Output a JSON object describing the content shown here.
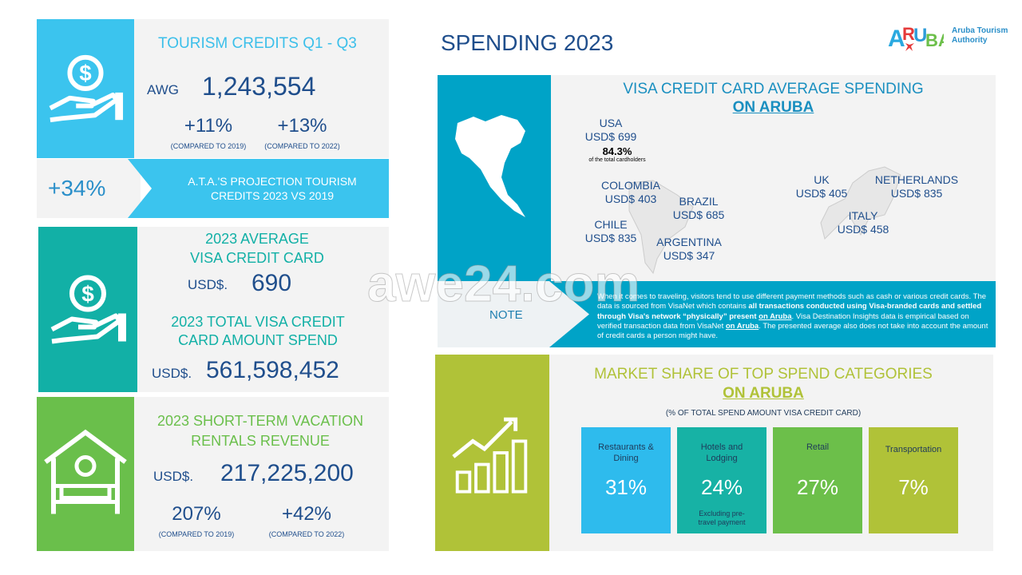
{
  "page_title": "SPENDING 2023",
  "logo": {
    "mark": "ARUBA",
    "text_line1": "Aruba Tourism",
    "text_line2": "Authority"
  },
  "credits": {
    "title": "TOURISM CREDITS Q1 - Q3",
    "currency": "AWG",
    "amount": "1,243,554",
    "change1": "+11%",
    "change1_note": "(COMPARED TO 2019)",
    "change2": "+13%",
    "change2_note": "(COMPARED TO 2022)",
    "projection_value": "+34%",
    "projection_line1": "A.T.A.'S PROJECTION TOURISM",
    "projection_line2": "CREDITS 2023 VS 2019"
  },
  "visa_avg": {
    "title_line1": "2023 AVERAGE",
    "title_line2": "VISA CREDIT CARD",
    "currency": "USD$.",
    "amount": "690",
    "total_line1": "2023 TOTAL VISA CREDIT",
    "total_line2": "CARD AMOUNT SPEND",
    "total_currency": "USD$.",
    "total_amount": "561,598,452"
  },
  "rentals": {
    "title_line1": "2023 SHORT-TERM VACATION",
    "title_line2": "RENTALS REVENUE",
    "currency": "USD$.",
    "amount": "217,225,200",
    "change1": "207%",
    "change1_note": "(COMPARED TO 2019)",
    "change2": "+42%",
    "change2_note": "(COMPARED TO 2022)"
  },
  "visa_panel": {
    "title_line1": "VISA CREDIT CARD AVERAGE SPENDING",
    "title_line2": "ON ARUBA",
    "countries": [
      {
        "name": "USA",
        "value": "USD$ 699"
      },
      {
        "name": "COLOMBIA",
        "value": "USD$ 403"
      },
      {
        "name": "BRAZIL",
        "value": "USD$ 685"
      },
      {
        "name": "CHILE",
        "value": "USD$ 835"
      },
      {
        "name": "ARGENTINA",
        "value": "USD$ 347"
      },
      {
        "name": "UK",
        "value": "USD$ 405"
      },
      {
        "name": "NETHERLANDS",
        "value": "USD$ 835"
      },
      {
        "name": "ITALY",
        "value": "USD$ 458"
      }
    ],
    "usa_share": "84.3%",
    "usa_share_note": "of the total cardholders",
    "note_label": "NOTE",
    "note_p1": "When it comes to traveling, visitors tend to use different payment methods such as cash or various credit cards. The data is sourced from VisaNet which contains ",
    "note_bold": "all transactions conducted using Visa-branded cards and settled through Visa's network “physically” present ",
    "note_u1": "on Aruba",
    "note_p2": ". Visa Destination Insights data is empirical based on verified transaction data from VisaNet ",
    "note_u2": "on Aruba",
    "note_p3": ". The presented average also does not take into account the amount of credit cards a person might have."
  },
  "market": {
    "title_line1": "MARKET SHARE OF TOP SPEND CATEGORIES",
    "title_line2": "ON ARUBA",
    "subtitle": "(% OF TOTAL SPEND AMOUNT VISA CREDIT CARD)",
    "categories": [
      {
        "label": "Restaurants & Dining",
        "value": "31%",
        "color": "#2ebbed"
      },
      {
        "label": "Hotels and Lodging",
        "value": "24%",
        "note": "Excluding pre-travel payment",
        "color": "#17b2a5"
      },
      {
        "label": "Retail",
        "value": "27%",
        "color": "#6cbf4a"
      },
      {
        "label": "Transportation",
        "value": "7%",
        "color": "#b0c238"
      }
    ]
  },
  "watermark": "awe24.com"
}
